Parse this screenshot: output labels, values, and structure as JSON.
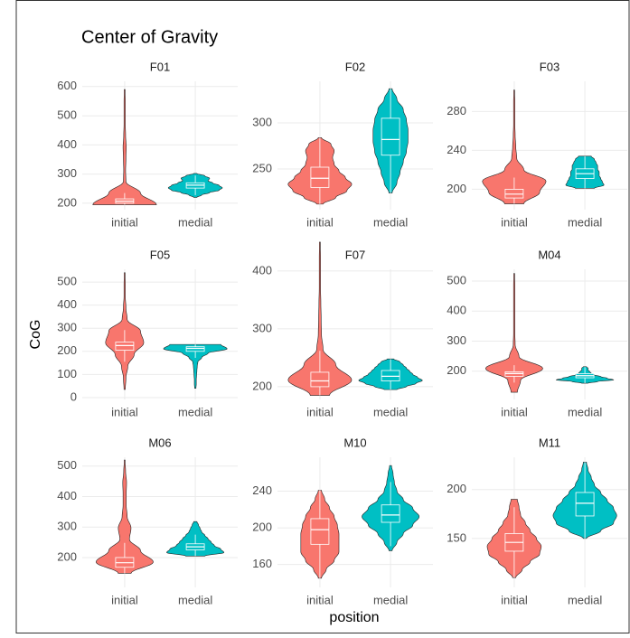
{
  "chart_data": {
    "type": "violin",
    "title": "Center of Gravity",
    "xlabel": "position",
    "ylabel": "CoG",
    "categories": [
      "initial",
      "medial"
    ],
    "colors": [
      "#f8766d",
      "#00bfc4"
    ],
    "grid": true,
    "panels": [
      {
        "title": "F01",
        "ylim": [
          178,
          618
        ],
        "yticks": [
          200,
          300,
          400,
          500,
          600
        ],
        "violins": [
          {
            "min": 195,
            "q1": 200,
            "median": 207,
            "q3": 215,
            "max": 590,
            "whisker": [
              195,
              235
            ],
            "density": [
              1,
              0.5,
              0.04,
              0.03,
              0.04,
              0.05,
              0.03,
              0.02,
              0.02,
              0.02,
              0.01
            ]
          },
          {
            "min": 220,
            "q1": 252,
            "median": 262,
            "q3": 270,
            "max": 302,
            "whisker": [
              228,
              295
            ],
            "density": [
              0.05,
              0.2,
              0.45,
              0.75,
              0.85,
              0.75,
              0.55,
              0.4,
              0.45,
              0.3,
              0.05
            ]
          }
        ]
      },
      {
        "title": "F02",
        "ylim": [
          206,
          345
        ],
        "yticks": [
          250,
          300
        ],
        "violins": [
          {
            "min": 212,
            "q1": 230,
            "median": 240,
            "q3": 252,
            "max": 284,
            "whisker": [
              212,
              284
            ],
            "density": [
              0.1,
              0.5,
              0.85,
              1,
              0.8,
              0.6,
              0.45,
              0.4,
              0.45,
              0.35,
              0.05
            ]
          },
          {
            "min": 224,
            "q1": 265,
            "median": 282,
            "q3": 305,
            "max": 337,
            "whisker": [
              224,
              337
            ],
            "density": [
              0.05,
              0.2,
              0.3,
              0.4,
              0.5,
              0.55,
              0.55,
              0.5,
              0.4,
              0.2,
              0.05
            ]
          }
        ]
      },
      {
        "title": "F03",
        "ylim": [
          179,
          311
        ],
        "yticks": [
          200,
          240,
          280
        ],
        "violins": [
          {
            "min": 185,
            "q1": 191,
            "median": 195,
            "q3": 200,
            "max": 302,
            "whisker": [
              185,
              212
            ],
            "density": [
              0.3,
              0.8,
              1,
              0.3,
              0.08,
              0.05,
              0.03,
              0.02,
              0.02,
              0.02,
              0.01
            ]
          },
          {
            "min": 201,
            "q1": 211,
            "median": 216,
            "q3": 221,
            "max": 234,
            "whisker": [
              201,
              234
            ],
            "density": [
              0.3,
              0.6,
              0.55,
              0.5,
              0.45,
              0.45,
              0.4,
              0.4,
              0.35,
              0.3,
              0.2
            ]
          }
        ]
      },
      {
        "title": "F05",
        "ylim": [
          -8,
          555
        ],
        "yticks": [
          0,
          100,
          200,
          300,
          400,
          500
        ],
        "violins": [
          {
            "min": 35,
            "q1": 205,
            "median": 225,
            "q3": 240,
            "max": 540,
            "whisker": [
              155,
              292
            ],
            "density": [
              0.02,
              0.04,
              0.1,
              0.3,
              0.6,
              0.5,
              0.08,
              0.04,
              0.02,
              0.02,
              0.01
            ]
          },
          {
            "min": 40,
            "q1": 200,
            "median": 213,
            "q3": 220,
            "max": 230,
            "whisker": [
              172,
              230
            ],
            "density": [
              0.02,
              0.03,
              0.03,
              0.04,
              0.05,
              0.06,
              0.08,
              0.2,
              0.4,
              1,
              0.8
            ]
          }
        ]
      },
      {
        "title": "F07",
        "ylim": [
          178,
          403
        ],
        "yticks": [
          200,
          300,
          400
        ],
        "violins": [
          {
            "min": 185,
            "q1": 200,
            "median": 210,
            "q3": 225,
            "max": 450,
            "whisker": [
              185,
              262
            ],
            "density": [
              0.3,
              1,
              0.5,
              0.1,
              0.05,
              0.04,
              0.03,
              0.02,
              0.02,
              0.02,
              0.01
            ]
          },
          {
            "min": 195,
            "q1": 210,
            "median": 218,
            "q3": 228,
            "max": 248,
            "whisker": [
              195,
              248
            ],
            "density": [
              0.2,
              0.5,
              0.8,
              1,
              0.85,
              0.7,
              0.6,
              0.5,
              0.4,
              0.3,
              0.1
            ]
          }
        ]
      },
      {
        "title": "M04",
        "ylim": [
          106,
          539
        ],
        "yticks": [
          200,
          300,
          400,
          500
        ],
        "violins": [
          {
            "min": 130,
            "q1": 183,
            "median": 192,
            "q3": 198,
            "max": 525,
            "whisker": [
              162,
              220
            ],
            "density": [
              0.1,
              0.2,
              0.9,
              0.15,
              0.03,
              0.02,
              0.02,
              0.02,
              0.02,
              0.02,
              0.01
            ]
          },
          {
            "min": 160,
            "q1": 178,
            "median": 185,
            "q3": 192,
            "max": 215,
            "whisker": [
              160,
              213
            ],
            "density": [
              0.1,
              0.4,
              0.9,
              0.7,
              0.5,
              0.3,
              0.2,
              0.15,
              0.1,
              0.1,
              0.05
            ]
          }
        ]
      },
      {
        "title": "M06",
        "ylim": [
          102,
          529
        ],
        "yticks": [
          200,
          300,
          400,
          500
        ],
        "violins": [
          {
            "min": 148,
            "q1": 168,
            "median": 183,
            "q3": 200,
            "max": 520,
            "whisker": [
              148,
              248
            ],
            "density": [
              0.2,
              0.9,
              0.5,
              0.15,
              0.2,
              0.08,
              0.05,
              0.05,
              0.06,
              0.03,
              0.01
            ]
          },
          {
            "min": 205,
            "q1": 225,
            "median": 235,
            "q3": 245,
            "max": 318,
            "whisker": [
              205,
              275
            ],
            "density": [
              0.3,
              0.9,
              0.8,
              0.6,
              0.5,
              0.4,
              0.3,
              0.2,
              0.15,
              0.1,
              0.05
            ]
          }
        ]
      },
      {
        "title": "M10",
        "ylim": [
          135,
          277
        ],
        "yticks": [
          160,
          200,
          240
        ],
        "violins": [
          {
            "min": 145,
            "q1": 182,
            "median": 198,
            "q3": 210,
            "max": 241,
            "whisker": [
              145,
              241
            ],
            "density": [
              0.05,
              0.2,
              0.45,
              0.6,
              0.6,
              0.6,
              0.55,
              0.45,
              0.3,
              0.15,
              0.05
            ]
          },
          {
            "min": 175,
            "q1": 206,
            "median": 214,
            "q3": 225,
            "max": 268,
            "whisker": [
              180,
              250
            ],
            "density": [
              0.05,
              0.2,
              0.4,
              0.7,
              0.9,
              0.7,
              0.4,
              0.2,
              0.12,
              0.08,
              0.03
            ]
          }
        ]
      },
      {
        "title": "M11",
        "ylim": [
          100,
          233
        ],
        "yticks": [
          150,
          200
        ],
        "violins": [
          {
            "min": 110,
            "q1": 137,
            "median": 146,
            "q3": 155,
            "max": 190,
            "whisker": [
              110,
              182
            ],
            "density": [
              0.05,
              0.25,
              0.5,
              0.8,
              0.85,
              0.7,
              0.5,
              0.35,
              0.2,
              0.15,
              0.1
            ]
          },
          {
            "min": 150,
            "q1": 173,
            "median": 186,
            "q3": 197,
            "max": 228,
            "whisker": [
              150,
              228
            ],
            "density": [
              0.05,
              0.5,
              0.9,
              1,
              0.9,
              0.7,
              0.5,
              0.3,
              0.2,
              0.1,
              0.05
            ]
          }
        ]
      }
    ]
  }
}
